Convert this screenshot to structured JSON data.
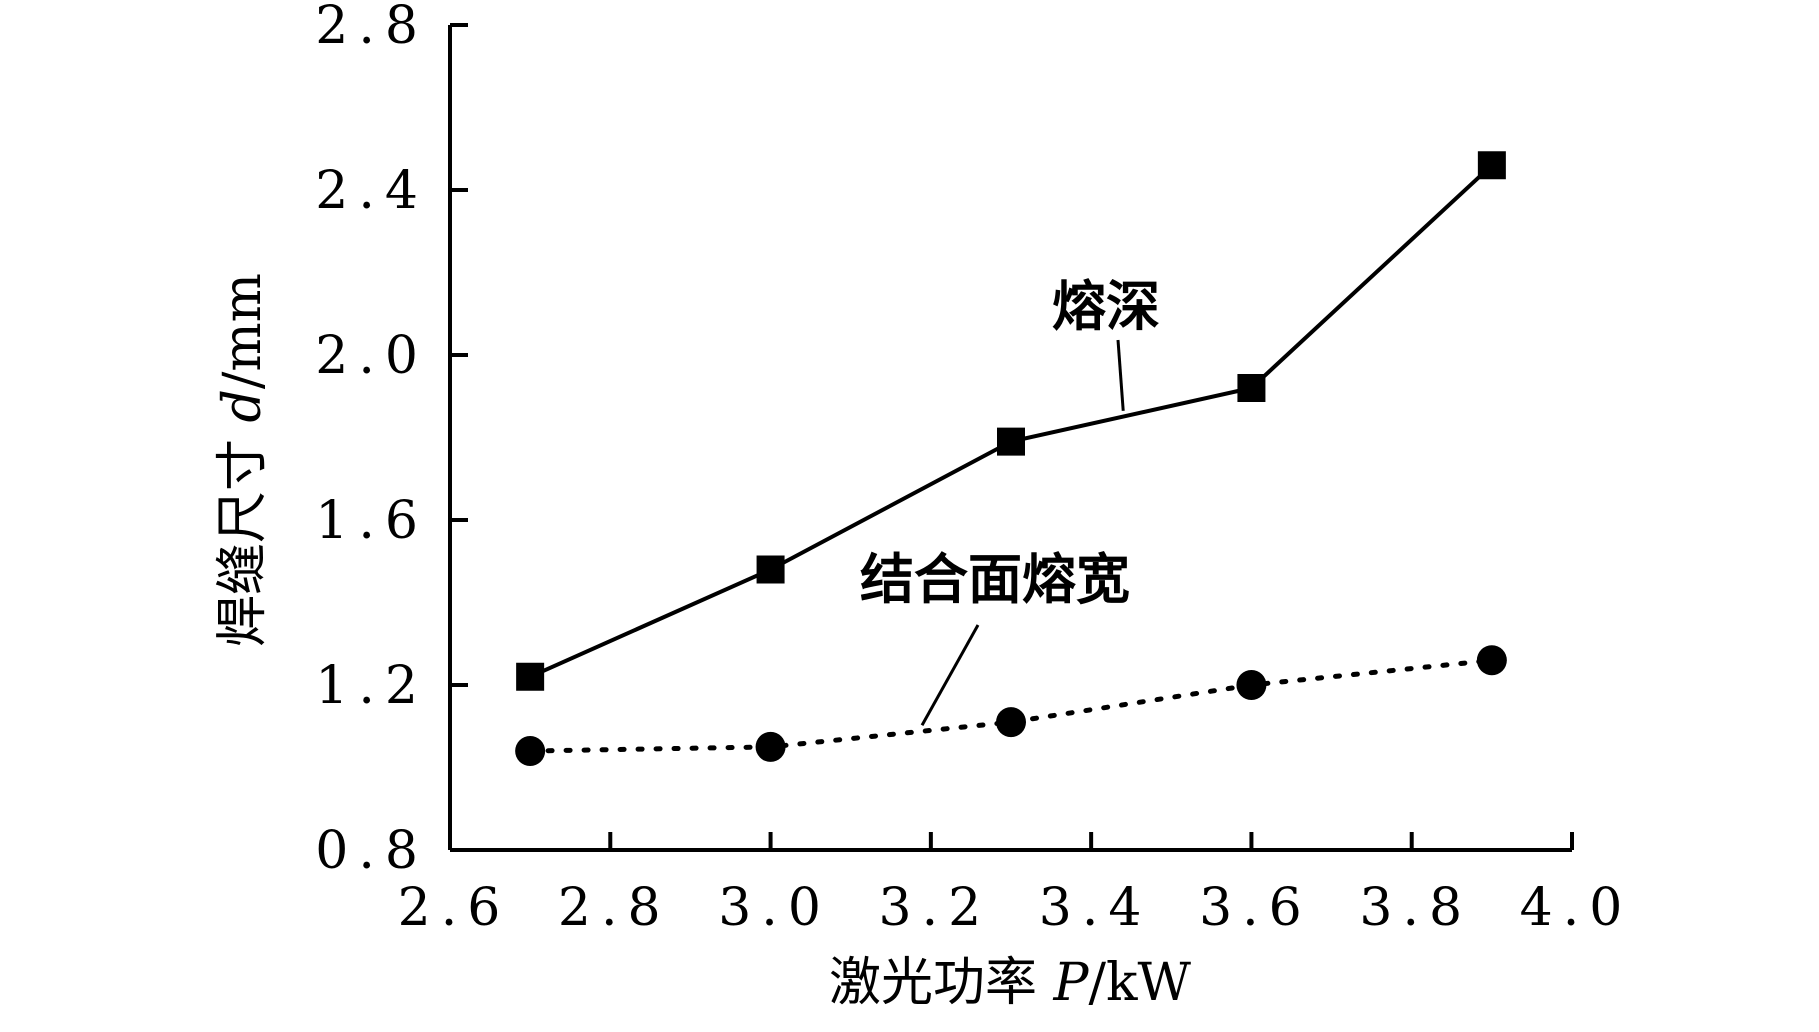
{
  "chart_data": {
    "type": "line",
    "xlabel": "激光功率 P/kW",
    "ylabel": "焊缝尺寸 d/mm",
    "xlim": [
      2.6,
      4.0
    ],
    "ylim": [
      0.8,
      2.8
    ],
    "x_ticks": [
      "2.6",
      "2.8",
      "3.0",
      "3.2",
      "3.4",
      "3.6",
      "3.8",
      "4.0"
    ],
    "y_ticks": [
      "0.8",
      "1.2",
      "1.6",
      "2.0",
      "2.4",
      "2.8"
    ],
    "grid": false,
    "series": [
      {
        "name": "熔深",
        "marker": "square",
        "line_style": "solid",
        "x": [
          2.7,
          3.0,
          3.3,
          3.6,
          3.9
        ],
        "y": [
          1.22,
          1.48,
          1.79,
          1.92,
          2.46
        ]
      },
      {
        "name": "结合面熔宽",
        "marker": "circle",
        "line_style": "dotted",
        "x": [
          2.7,
          3.0,
          3.3,
          3.6,
          3.9
        ],
        "y": [
          1.04,
          1.05,
          1.11,
          1.2,
          1.26
        ]
      }
    ]
  },
  "axis_labels": {
    "x_prefix": "激光功率 ",
    "x_var": "P",
    "x_unit": "/kW",
    "y_prefix": "焊缝尺寸 ",
    "y_var": "d",
    "y_unit": "/mm"
  }
}
